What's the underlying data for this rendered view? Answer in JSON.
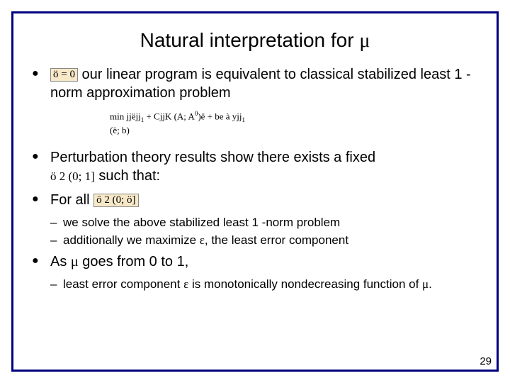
{
  "colors": {
    "border": "#000080",
    "highlight_bg": "#f7e8c8",
    "highlight_border": "#888888",
    "text": "#000000",
    "background": "#ffffff"
  },
  "slide": {
    "title_pre": "Natural interpretation for ",
    "title_sym": "μ",
    "page_number": "29"
  },
  "bullets": {
    "b1_hl": "ö = 0",
    "b1_text": " our linear program is equivalent to classical stabilized least 1 -norm approximation problem",
    "formula_line1_a": "min jjëjj",
    "formula_line1_sub1": "1",
    "formula_line1_b": " + CjjK (A; A",
    "formula_line1_sup": "0",
    "formula_line1_c": ")ë + be à yjj",
    "formula_line1_sub2": "1",
    "formula_line2": "(ë; b)",
    "b2_text_a": "Perturbation theory results show there exists a fixed ",
    "b2_math": "ö 2 (0; 1]",
    "b2_text_b": " such that:",
    "b3_text": "For all ",
    "b3_hl": "ö 2 (0; ö]",
    "sub_a": "we solve the above stabilized least 1 -norm problem",
    "sub_b_a": "additionally we maximize ",
    "sub_b_eps": "ε",
    "sub_b_b": ", the least error component",
    "b4_a": "As ",
    "b4_mu": "μ",
    "b4_b": " goes from 0 to 1,",
    "sub_c_a": "least error component ",
    "sub_c_eps": "ε",
    "sub_c_b": " is monotonically nondecreasing function of ",
    "sub_c_mu": "μ",
    "sub_c_c": "."
  }
}
